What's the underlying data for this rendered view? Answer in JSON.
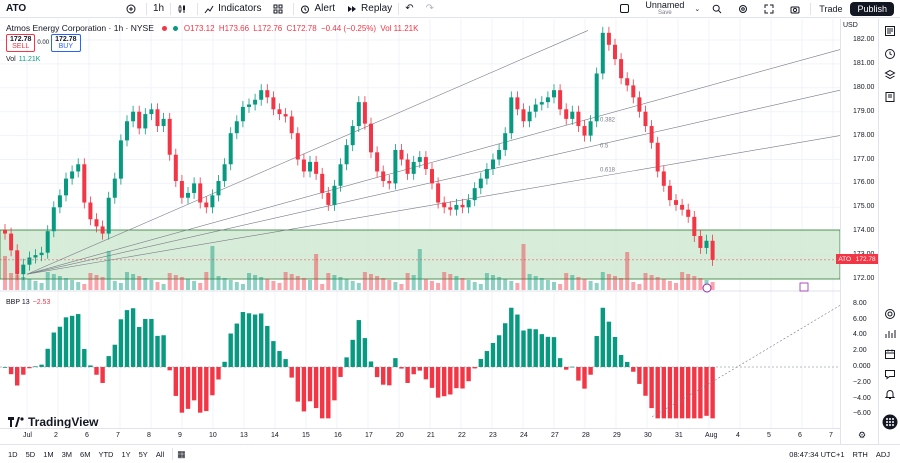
{
  "topbar": {
    "symbol": "ATO",
    "interval": "1h",
    "indicators_label": "Indicators",
    "alert_label": "Alert",
    "replay_label": "Replay",
    "layout_name": "Unnamed",
    "layout_sub": "Save",
    "trade_label": "Trade",
    "publish_label": "Publish"
  },
  "legend": {
    "title": "Atmos Energy Corporation · 1h · NYSE",
    "open": "O173.12",
    "high": "H173.66",
    "low": "L172.76",
    "close": "C172.78",
    "change": "−0.44 (−0.25%)",
    "vol": "Vol 11.21K",
    "sell_price": "172.78",
    "sell_label": "SELL",
    "spread": "0.00",
    "buy_price": "172.78",
    "buy_label": "BUY",
    "vol_legend_label": "Vol",
    "vol_legend_value": "11.21K",
    "osc_label": "BBP 13",
    "osc_value": "−2.53"
  },
  "price_scale": {
    "currency": "USD",
    "labels": [
      "182.00",
      "181.00",
      "180.00",
      "179.00",
      "178.00",
      "177.00",
      "176.00",
      "175.00",
      "174.00",
      "173.00",
      "172.00"
    ],
    "osc_labels": [
      "8.00",
      "6.00",
      "4.00",
      "2.00",
      "0.000",
      "−2.00",
      "−4.00",
      "−6.00"
    ],
    "last_tag_symbol": "ATO",
    "last_tag_price": "172.78"
  },
  "fib": {
    "levels": [
      "0.382",
      "0.5",
      "0.618"
    ]
  },
  "time_axis": {
    "labels": [
      "Jul",
      "2",
      "6",
      "7",
      "8",
      "9",
      "10",
      "13",
      "14",
      "15",
      "16",
      "17",
      "20",
      "21",
      "22",
      "23",
      "24",
      "27",
      "28",
      "29",
      "30",
      "31",
      "Aug",
      "4",
      "5",
      "6",
      "7"
    ]
  },
  "branding": {
    "logo_text": "TradingView"
  },
  "bottombar": {
    "ranges": [
      "1D",
      "5D",
      "1M",
      "3M",
      "6M",
      "YTD",
      "1Y",
      "5Y",
      "All"
    ],
    "clock": "08:47:34 UTC+1",
    "session": "RTH",
    "adj": "ADJ"
  },
  "colors": {
    "up": "#089981",
    "down": "#f23645",
    "zone": "#c8e6c9",
    "text": "#131722"
  },
  "chart_data": {
    "type": "candlestick",
    "title": "Atmos Energy Corporation · 1h · NYSE",
    "ylim": [
      171.5,
      182.6
    ],
    "closes": [
      173.9,
      173.2,
      172.2,
      172.6,
      172.9,
      173.0,
      173.1,
      174.0,
      175.0,
      175.5,
      176.2,
      176.5,
      176.8,
      175.2,
      174.5,
      174.2,
      173.9,
      175.4,
      176.2,
      177.8,
      178.6,
      179.0,
      178.3,
      178.9,
      179.1,
      178.4,
      178.7,
      177.2,
      176.1,
      175.4,
      175.6,
      176.0,
      175.2,
      175.0,
      175.5,
      176.1,
      176.8,
      178.1,
      178.6,
      179.2,
      179.3,
      179.5,
      179.9,
      179.6,
      179.1,
      178.9,
      178.8,
      178.1,
      177.0,
      176.5,
      176.9,
      176.4,
      175.6,
      175.1,
      175.9,
      176.8,
      177.6,
      178.4,
      179.4,
      178.5,
      177.3,
      176.5,
      176.1,
      176.0,
      177.4,
      177.0,
      176.4,
      176.9,
      177.1,
      176.6,
      176.0,
      175.2,
      175.0,
      174.9,
      175.1,
      175.0,
      175.3,
      175.8,
      176.2,
      176.6,
      177.0,
      177.4,
      178.1,
      179.6,
      179.1,
      178.6,
      179.0,
      179.3,
      179.4,
      179.6,
      179.9,
      179.1,
      178.7,
      179.0,
      178.4,
      178.0,
      178.6,
      180.6,
      182.3,
      181.8,
      181.2,
      180.4,
      180.1,
      179.6,
      179.0,
      178.4,
      177.7,
      176.5,
      175.9,
      175.3,
      175.1,
      174.9,
      174.6,
      173.8,
      173.3,
      173.6,
      172.8
    ],
    "volume_legend": "Vol 11.21K",
    "oscillator": {
      "name": "BBP 13",
      "last": -2.53,
      "ylim": [
        -7,
        8
      ]
    },
    "fib_fan_levels": [
      "0.382",
      "0.5",
      "0.618"
    ]
  }
}
